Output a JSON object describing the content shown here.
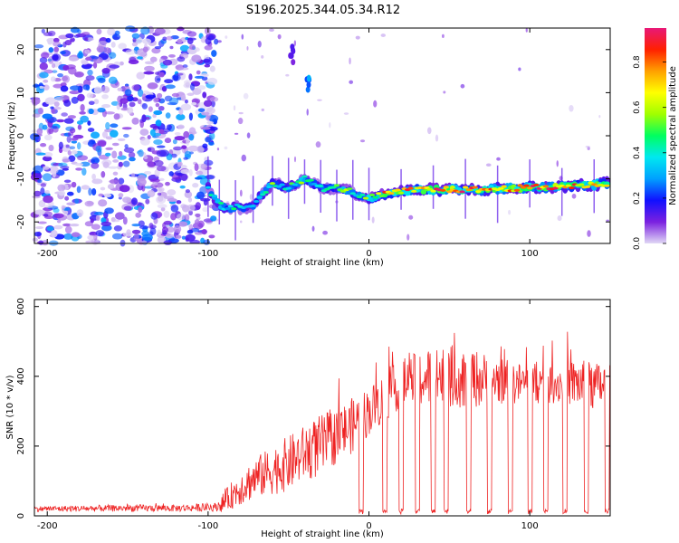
{
  "title": "S196.2025.344.05.34.R12",
  "chart_data": [
    {
      "type": "heatmap",
      "name": "spectrogram",
      "xlabel": "Height of straight line (km)",
      "ylabel": "Frequency (Hz)",
      "xlim": [
        -208,
        150
      ],
      "ylim": [
        -25,
        25
      ],
      "xticks": [
        -200,
        -100,
        0,
        100
      ],
      "yticks": [
        -20,
        -10,
        0,
        10,
        20
      ],
      "colorbar": {
        "label": "Normalized spectral amplitude",
        "range": [
          0,
          0.95
        ],
        "ticks": [
          0.0,
          0.2,
          0.4,
          0.6,
          0.8
        ],
        "colors": [
          "#e0d8f5",
          "#7b20e0",
          "#1010ff",
          "#00a0ff",
          "#00e8f0",
          "#00ff60",
          "#a0ff00",
          "#ffff00",
          "#ffa000",
          "#ff2000",
          "#e81878"
        ]
      },
      "signal_track": {
        "x": [
          -100,
          -97,
          -93,
          -88,
          -83,
          -78,
          -72,
          -65,
          -60,
          -55,
          -50,
          -45,
          -40,
          -35,
          -30,
          -25,
          -20,
          -15,
          -10,
          -5,
          0,
          10,
          20,
          30,
          40,
          50,
          60,
          70,
          80,
          90,
          100,
          110,
          120,
          130,
          140,
          150
        ],
        "y": [
          -12,
          -14,
          -16,
          -17,
          -16.5,
          -17,
          -16,
          -13,
          -11,
          -11.5,
          -12,
          -11,
          -10,
          -11,
          -12,
          -12.5,
          -12,
          -12.5,
          -13,
          -14,
          -14.5,
          -13.5,
          -13,
          -12.5,
          -12.5,
          -12.5,
          -12.5,
          -12.5,
          -12.3,
          -12.2,
          -12,
          -12,
          -11.8,
          -11.6,
          -11.4,
          -11
        ],
        "amplitude": [
          0.3,
          0.4,
          0.45,
          0.35,
          0.4,
          0.3,
          0.35,
          0.4,
          0.5,
          0.35,
          0.4,
          0.45,
          0.55,
          0.4,
          0.35,
          0.5,
          0.45,
          0.6,
          0.4,
          0.45,
          0.5,
          0.7,
          0.75,
          0.7,
          0.8,
          0.85,
          0.75,
          0.8,
          0.75,
          0.8,
          0.9,
          0.85,
          0.8,
          0.7,
          0.75,
          0.8
        ]
      },
      "noise_region_x": [
        -208,
        -95
      ],
      "artifacts": [
        {
          "x": -38,
          "y_center": 12,
          "y_halfwidth": 1.5,
          "amplitude": 0.35
        },
        {
          "x": -48,
          "y_center": 19,
          "y_halfwidth": 2,
          "amplitude": 0.15
        }
      ]
    },
    {
      "type": "line",
      "name": "snr",
      "xlabel": "Height of straight line (km)",
      "ylabel": "SNR (10 * v/v)",
      "xlim": [
        -208,
        150
      ],
      "ylim": [
        0,
        620
      ],
      "xticks": [
        -200,
        -100,
        0,
        100
      ],
      "yticks": [
        0,
        200,
        400,
        600
      ],
      "color": "#ee2222",
      "envelope": {
        "x": [
          -208,
          -150,
          -120,
          -95,
          -90,
          -80,
          -70,
          -60,
          -50,
          -40,
          -30,
          -20,
          -10,
          0,
          10,
          20,
          30,
          40,
          50,
          60,
          70,
          80,
          90,
          100,
          110,
          120,
          130,
          140,
          150
        ],
        "y": [
          20,
          22,
          22,
          25,
          40,
          80,
          110,
          130,
          150,
          180,
          200,
          230,
          260,
          300,
          340,
          380,
          390,
          400,
          400,
          400,
          390,
          390,
          380,
          380,
          380,
          380,
          380,
          370,
          380
        ],
        "spread": [
          8,
          10,
          10,
          12,
          30,
          50,
          60,
          70,
          80,
          80,
          90,
          80,
          80,
          70,
          70,
          70,
          80,
          90,
          90,
          90,
          80,
          70,
          60,
          60,
          60,
          60,
          70,
          70,
          60
        ]
      },
      "dropouts_x": [
        -5,
        10,
        20,
        30,
        40,
        48,
        62,
        75,
        88,
        100,
        110,
        122,
        135,
        148
      ]
    }
  ]
}
